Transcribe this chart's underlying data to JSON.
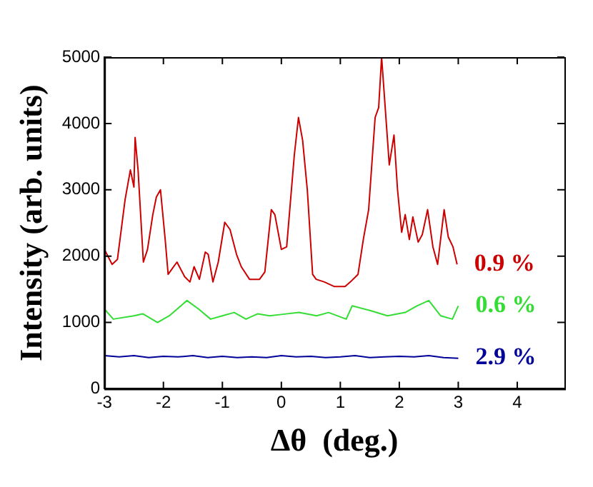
{
  "chart_data": {
    "type": "line",
    "xlabel": "Δθ  (deg.)",
    "ylabel": "Intensity (arb. units)",
    "xlim": [
      -3,
      4.8
    ],
    "xticks": [
      -3,
      -2,
      -1,
      0,
      1,
      2,
      3,
      4
    ],
    "ylim": [
      0,
      5000
    ],
    "yticks": [
      0,
      1000,
      2000,
      3000,
      4000,
      5000
    ],
    "grid": false,
    "legend": false,
    "marker": "none",
    "line_style": "solid",
    "series": [
      {
        "name": "0.9 %",
        "color": "#cc0000",
        "x": [
          -3.0,
          -2.87,
          -2.78,
          -2.65,
          -2.56,
          -2.5,
          -2.48,
          -2.43,
          -2.34,
          -2.27,
          -2.18,
          -2.12,
          -2.05,
          -1.97,
          -1.92,
          -1.77,
          -1.64,
          -1.55,
          -1.48,
          -1.39,
          -1.29,
          -1.24,
          -1.16,
          -1.07,
          -0.96,
          -0.87,
          -0.76,
          -0.68,
          -0.54,
          -0.37,
          -0.28,
          -0.17,
          -0.11,
          0,
          0.09,
          0.22,
          0.29,
          0.36,
          0.44,
          0.53,
          0.59,
          0.73,
          0.9,
          1.08,
          1.17,
          1.3,
          1.39,
          1.48,
          1.59,
          1.65,
          1.7,
          1.74,
          1.83,
          1.91,
          1.97,
          2.04,
          2.1,
          2.17,
          2.23,
          2.32,
          2.39,
          2.48,
          2.57,
          2.65,
          2.76,
          2.83,
          2.91,
          2.98
        ],
        "values": [
          2100,
          1875,
          1950,
          2850,
          3300,
          3040,
          3790,
          3300,
          1910,
          2100,
          2625,
          2890,
          3000,
          2250,
          1725,
          1910,
          1690,
          1610,
          1840,
          1650,
          2060,
          2025,
          1610,
          1910,
          2510,
          2400,
          2025,
          1840,
          1650,
          1650,
          1760,
          2700,
          2625,
          2100,
          2140,
          3525,
          4090,
          3750,
          3000,
          1725,
          1650,
          1610,
          1540,
          1540,
          1610,
          1725,
          2250,
          2700,
          4090,
          4240,
          5000,
          4500,
          3375,
          3825,
          3000,
          2360,
          2625,
          2250,
          2590,
          2210,
          2325,
          2700,
          2140,
          1875,
          2700,
          2290,
          2140,
          1875
        ]
      },
      {
        "name": "0.6 %",
        "color": "#33dd33",
        "x": [
          -3.0,
          -2.85,
          -2.5,
          -2.35,
          -2.1,
          -1.9,
          -1.6,
          -1.4,
          -1.2,
          -1.0,
          -0.8,
          -0.6,
          -0.4,
          -0.2,
          0,
          0.3,
          0.6,
          0.8,
          1.1,
          1.2,
          1.5,
          1.8,
          2.1,
          2.3,
          2.5,
          2.7,
          2.9,
          3.0
        ],
        "values": [
          1200,
          1050,
          1100,
          1130,
          1000,
          1100,
          1330,
          1200,
          1050,
          1100,
          1150,
          1050,
          1130,
          1100,
          1120,
          1150,
          1100,
          1150,
          1050,
          1250,
          1180,
          1100,
          1150,
          1250,
          1330,
          1100,
          1050,
          1250
        ]
      },
      {
        "name": "2.9 %",
        "color": "#000099",
        "x": [
          -3.0,
          -2.75,
          -2.5,
          -2.25,
          -2.0,
          -1.75,
          -1.5,
          -1.25,
          -1.0,
          -0.75,
          -0.5,
          -0.25,
          0,
          0.25,
          0.5,
          0.75,
          1.0,
          1.25,
          1.5,
          1.75,
          2.0,
          2.25,
          2.5,
          2.75,
          3.0
        ],
        "values": [
          500,
          480,
          500,
          470,
          490,
          480,
          500,
          470,
          490,
          470,
          480,
          470,
          500,
          480,
          490,
          470,
          480,
          500,
          470,
          480,
          490,
          480,
          500,
          470,
          460
        ]
      }
    ]
  }
}
